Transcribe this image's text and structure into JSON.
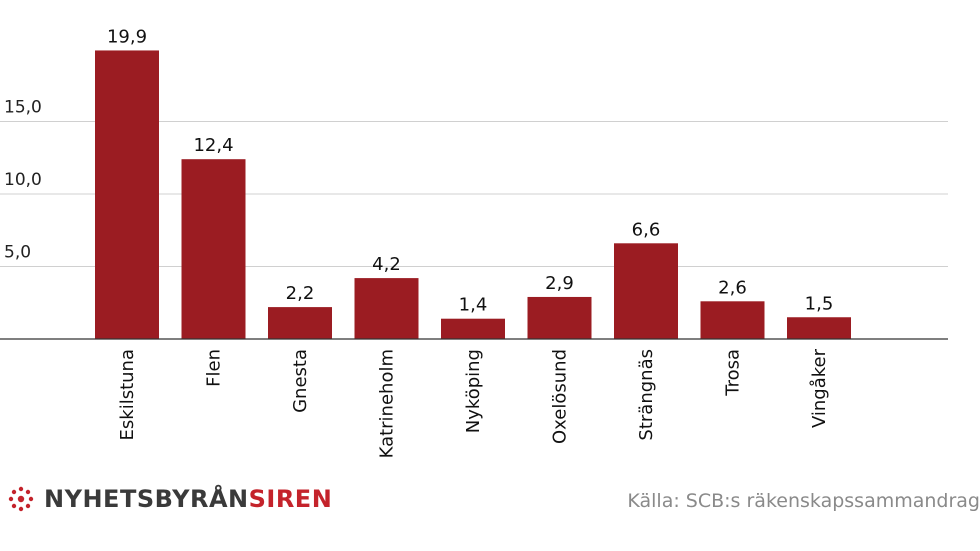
{
  "chart_data": {
    "type": "bar",
    "categories": [
      "Eskilstuna",
      "Flen",
      "Gnesta",
      "Katrineholm",
      "Nyköping",
      "Oxelösund",
      "Strängnäs",
      "Trosa",
      "Vingåker"
    ],
    "values": [
      19.9,
      12.4,
      2.2,
      4.2,
      1.4,
      2.9,
      6.6,
      2.6,
      1.5
    ],
    "value_labels": [
      "19,9",
      "12,4",
      "2,2",
      "4,2",
      "1,4",
      "2,9",
      "6,6",
      "2,6",
      "1,5"
    ],
    "y_ticks": [
      5,
      10,
      15
    ],
    "y_tick_labels": [
      "5,0",
      "10,0",
      "15,0"
    ],
    "ylim": [
      0,
      20.5
    ],
    "grid": true,
    "bar_color": "#9b1c22",
    "grid_color": "#d0d0d0",
    "axis_color": "#333333"
  },
  "footer": {
    "brand_part1": "NYHETSBYRÅN",
    "brand_part2": "SIREN",
    "brand_icon": "siren-logo-icon",
    "brand_color_primary": "#3a3a3a",
    "brand_color_accent": "#c4232b",
    "source": "Källa: SCB:s räkenskapssammandrag"
  }
}
